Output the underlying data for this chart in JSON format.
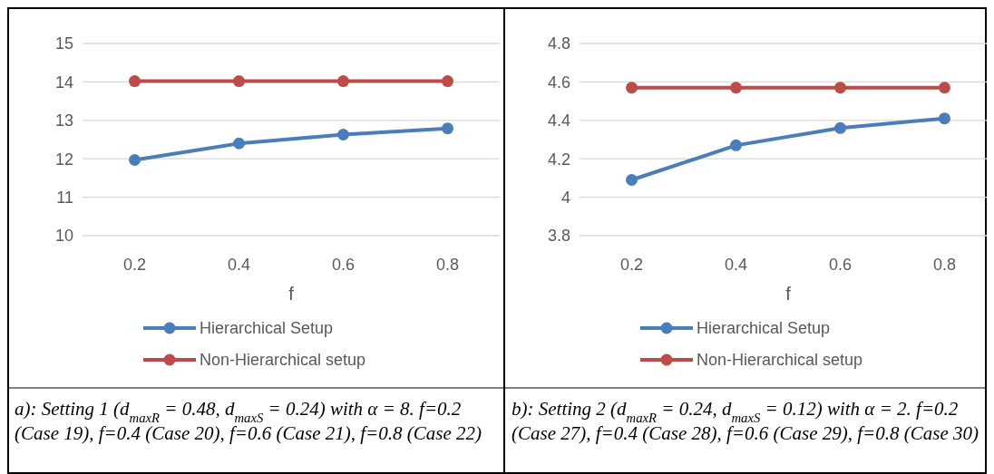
{
  "chart_data": [
    {
      "type": "line",
      "xlabel": "f",
      "categories": [
        "0.2",
        "0.4",
        "0.6",
        "0.8"
      ],
      "ylim": [
        10,
        15
      ],
      "yticks": [
        10,
        11,
        12,
        13,
        14,
        15
      ],
      "grid": "y",
      "legend": "bottom",
      "marker": "circle",
      "line_style": "solid",
      "series": [
        {
          "name": "Hierarchical Setup",
          "color": "#4a7ebb",
          "values": [
            11.97,
            12.4,
            12.63,
            12.79
          ]
        },
        {
          "name": "Non-Hierarchical setup",
          "color": "#be4b48",
          "values": [
            14.02,
            14.02,
            14.02,
            14.02
          ]
        }
      ],
      "annotations": [
        "a): Setting 1 (d$_{maxR}$ = 0.48, d$_{maxS}$ = 0.24) with α = 8. f=0.2 (Case 19), f=0.4 (Case 20), f=0.6 (Case 21), f=0.8 (Case 22)"
      ]
    },
    {
      "type": "line",
      "xlabel": "f",
      "categories": [
        "0.2",
        "0.4",
        "0.6",
        "0.8"
      ],
      "ylim": [
        3.8,
        4.8
      ],
      "yticks": [
        {
          "value": 3.8,
          "label": "3.8"
        },
        {
          "value": 4,
          "label": "4"
        },
        {
          "value": 4.2,
          "label": "4.2"
        },
        {
          "value": 4.4,
          "label": "4.4"
        },
        {
          "value": 4.6,
          "label": "4.6"
        },
        {
          "value": 4.8,
          "label": "4.8"
        }
      ],
      "grid": "y",
      "legend": "bottom",
      "marker": "circle",
      "line_style": "solid",
      "series": [
        {
          "name": "Hierarchical Setup",
          "color": "#4a7ebb",
          "values": [
            4.09,
            4.27,
            4.36,
            4.41
          ]
        },
        {
          "name": "Non-Hierarchical setup",
          "color": "#be4b48",
          "values": [
            4.57,
            4.57,
            4.57,
            4.57
          ]
        }
      ],
      "annotations": [
        "b): Setting 2 (d$_{maxR}$ = 0.24, d$_{maxS}$ = 0.12) with α = 2. f=0.2 (Case 27), f=0.4 (Case 28), f=0.6 (Case 29), f=0.8 (Case 30)"
      ]
    }
  ]
}
